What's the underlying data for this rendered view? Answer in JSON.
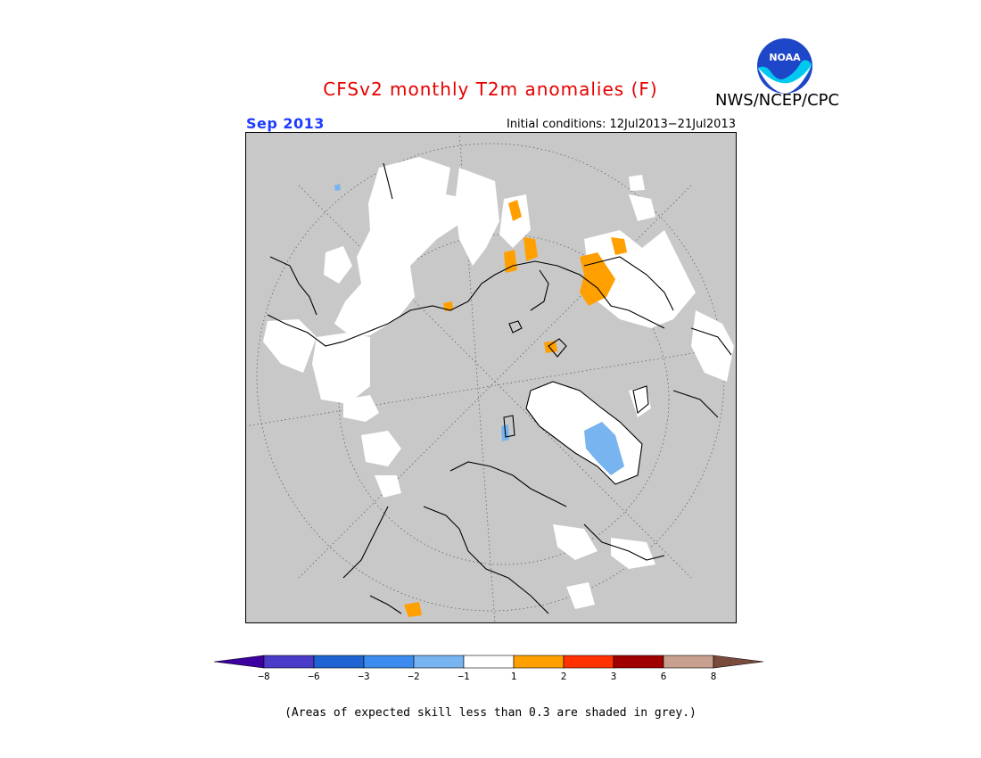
{
  "header": {
    "title": "CFSv2 monthly T2m anomalies (F)",
    "org": "NWS/NCEP/CPC",
    "month": "Sep 2013",
    "initial_conditions": "Initial conditions: 12Jul2013−21Jul2013",
    "logo_text": "NOAA"
  },
  "colors": {
    "background_grey": "#c8c8c8",
    "low_skill_white": "#ffffff",
    "warm_orange": "#ffa000",
    "cool_light_blue": "#78b4f0"
  },
  "legend": {
    "segments": [
      {
        "color": "#3c00a0"
      },
      {
        "color": "#4a3cc8"
      },
      {
        "color": "#1e64d2"
      },
      {
        "color": "#3c8cf0"
      },
      {
        "color": "#78b4f0"
      },
      {
        "color": "#ffffff"
      },
      {
        "color": "#ffa000"
      },
      {
        "color": "#ff3200"
      },
      {
        "color": "#a00000"
      },
      {
        "color": "#c8a090"
      },
      {
        "color": "#784b3c"
      }
    ],
    "tick_labels": [
      "−8",
      "−6",
      "−3",
      "−2",
      "−1",
      "1",
      "2",
      "3",
      "6",
      "8"
    ]
  },
  "footnote": "(Areas of expected skill less than 0.3 are shaded in grey.)"
}
